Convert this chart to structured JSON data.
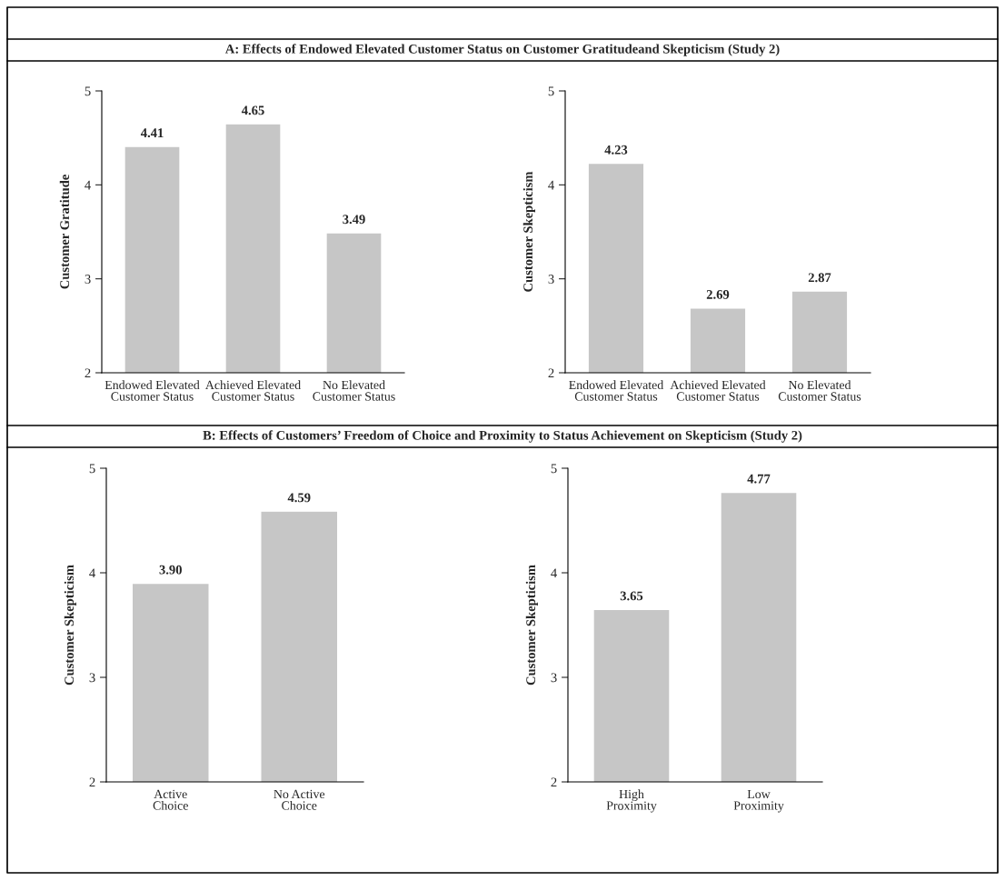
{
  "chart_data": [
    {
      "type": "bar",
      "title": "A: Effects of Endowed Elevated Customer Status on Customer Gratitudeand Skepticism (Study 2)",
      "ylabel": "Customer Gratitude",
      "categories": [
        "Endowed Elevated\nCustomer Status",
        "Achieved Elevated\nCustomer Status",
        "No Elevated\nCustomer Status"
      ],
      "values": [
        4.41,
        4.65,
        3.49
      ],
      "value_labels": [
        "4.41",
        "4.65",
        "3.49"
      ],
      "color": "#c6c6c6",
      "ylim": [
        2,
        5
      ],
      "yticks": [
        2,
        3,
        4,
        5
      ],
      "grid": false,
      "legend": false
    },
    {
      "type": "bar",
      "ylabel": "Customer Skepticism",
      "categories": [
        "Endowed Elevated\nCustomer Status",
        "Achieved Elevated\nCustomer Status",
        "No Elevated\nCustomer Status"
      ],
      "values": [
        4.23,
        2.69,
        2.87
      ],
      "value_labels": [
        "4.23",
        "2.69",
        "2.87"
      ],
      "color": "#c6c6c6",
      "ylim": [
        2,
        5
      ],
      "yticks": [
        2,
        3,
        4,
        5
      ],
      "grid": false,
      "legend": false
    },
    {
      "type": "bar",
      "title": "B: Effects of Customers’ Freedom of Choice and Proximity to Status Achievement on Skepticism (Study 2)",
      "ylabel": "Customer Skepticism",
      "categories": [
        "Active\nChoice",
        "No Active\nChoice"
      ],
      "values": [
        3.9,
        4.59
      ],
      "value_labels": [
        "3.90",
        "4.59"
      ],
      "color": "#c6c6c6",
      "ylim": [
        2,
        5
      ],
      "yticks": [
        2,
        3,
        4,
        5
      ],
      "grid": false,
      "legend": false
    },
    {
      "type": "bar",
      "ylabel": "Customer Skepticism",
      "categories": [
        "High\nProximity",
        "Low\nProximity"
      ],
      "values": [
        3.65,
        4.77
      ],
      "value_labels": [
        "3.65",
        "4.77"
      ],
      "color": "#c6c6c6",
      "ylim": [
        2,
        5
      ],
      "yticks": [
        2,
        3,
        4,
        5
      ],
      "grid": false,
      "legend": false
    }
  ]
}
